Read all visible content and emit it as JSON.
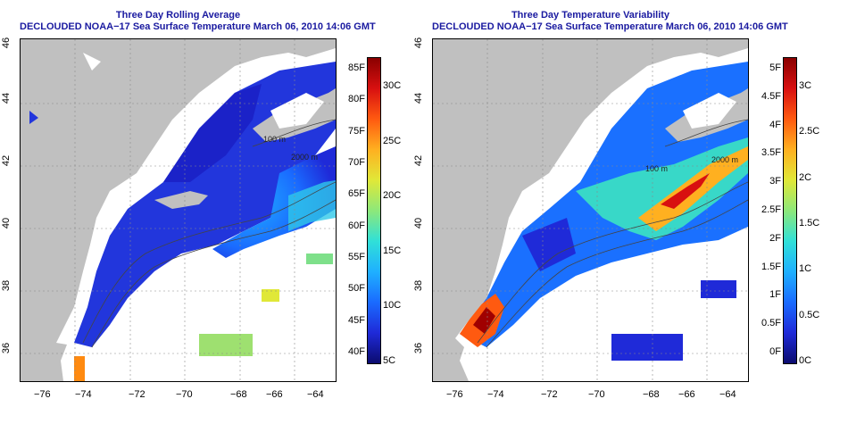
{
  "panels": [
    {
      "id": "left",
      "title_line1": "Three Day Rolling Average",
      "title_line2": "DECLOUDED NOAA−17 Sea Surface Temperature March 06, 2010 14:06 GMT",
      "x_ticks": [
        "−76",
        "−74",
        "−72",
        "−70",
        "−68",
        "−66",
        "−64"
      ],
      "y_ticks": [
        "36",
        "38",
        "40",
        "42",
        "44",
        "46"
      ],
      "contour_labels": [
        "100 m",
        "2000 m"
      ],
      "colorbar": {
        "colors": [
          "#0b0b6e",
          "#1f2ad8",
          "#1a6bff",
          "#1fb0ff",
          "#30e0d8",
          "#8de87a",
          "#e0e838",
          "#ffb020",
          "#ff5a10",
          "#d81010",
          "#8a0000"
        ],
        "f_labels": [
          "40F",
          "45F",
          "50F",
          "55F",
          "60F",
          "65F",
          "70F",
          "75F",
          "80F",
          "85F"
        ],
        "c_labels": [
          "5C",
          "10C",
          "15C",
          "20C",
          "25C",
          "30C"
        ]
      }
    },
    {
      "id": "right",
      "title_line1": "Three Day Temperature Variability",
      "title_line2": "DECLOUDED NOAA−17 Sea Surface Temperature March 06, 2010 14:06 GMT",
      "x_ticks": [
        "−76",
        "−74",
        "−72",
        "−70",
        "−68",
        "−66",
        "−64"
      ],
      "y_ticks": [
        "36",
        "38",
        "40",
        "42",
        "44",
        "46"
      ],
      "contour_labels": [
        "100 m",
        "2000 m"
      ],
      "colorbar": {
        "colors": [
          "#0b0b6e",
          "#1f2ad8",
          "#1a6bff",
          "#1fb0ff",
          "#30e0d8",
          "#8de87a",
          "#e0e838",
          "#ffb020",
          "#ff5a10",
          "#d81010",
          "#8a0000"
        ],
        "f_labels": [
          "0F",
          "0.5F",
          "1F",
          "1.5F",
          "2F",
          "2.5F",
          "3F",
          "3.5F",
          "4F",
          "4.5F",
          "5F"
        ],
        "c_labels": [
          "0C",
          "0.5C",
          "1C",
          "1.5C",
          "2C",
          "2.5C",
          "3C"
        ]
      }
    }
  ],
  "colors": {
    "land": "#c0c0c0",
    "title": "#1a1aa0",
    "ocean_no_data": "#ffffff"
  }
}
